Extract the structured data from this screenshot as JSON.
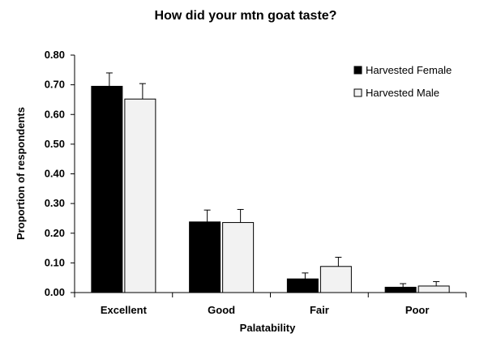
{
  "chart_data": {
    "type": "bar",
    "title": "How did your mtn goat taste?",
    "xlabel": "Palatability",
    "ylabel": "Proportion of respondents",
    "categories": [
      "Excellent",
      "Good",
      "Fair",
      "Poor"
    ],
    "ylim": [
      0,
      0.8
    ],
    "yticks": [
      "0.00",
      "0.10",
      "0.20",
      "0.30",
      "0.40",
      "0.50",
      "0.60",
      "0.70",
      "0.80"
    ],
    "grid": false,
    "legend_position": "top-right",
    "error_bars": true,
    "series": [
      {
        "name": "Harvested Female",
        "color": "#000000",
        "values": [
          0.695,
          0.238,
          0.046,
          0.018
        ],
        "errors": [
          0.045,
          0.04,
          0.02,
          0.012
        ]
      },
      {
        "name": "Harvested Male",
        "color": "#f2f2f2",
        "values": [
          0.652,
          0.236,
          0.088,
          0.022
        ],
        "errors": [
          0.052,
          0.044,
          0.031,
          0.015
        ]
      }
    ]
  }
}
